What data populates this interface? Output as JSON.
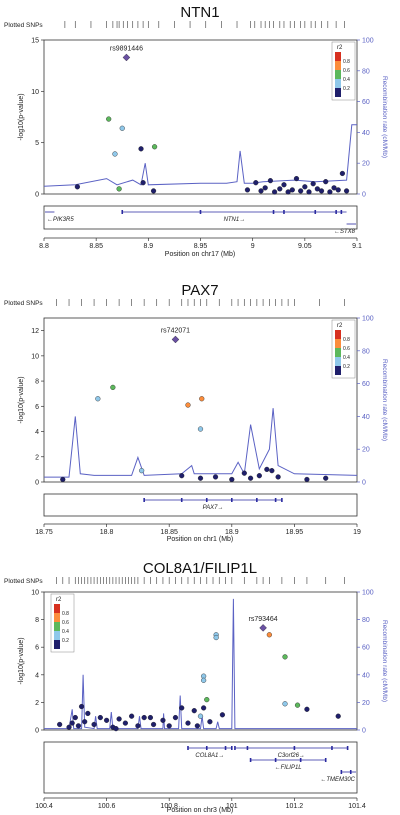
{
  "chart_data": [
    {
      "type": "scatter",
      "title": "NTN1",
      "plotted_snps_label": "Plotted SNPs",
      "xlabel": "Position on chr17 (Mb)",
      "ylabel": "-log10(p-value)",
      "y2label": "Recombination rate (cM/Mb)",
      "xlim": [
        8.8,
        9.1
      ],
      "ylim": [
        0,
        15
      ],
      "y2lim": [
        0,
        100
      ],
      "x_ticks": [
        "8.8",
        "8.85",
        "8.9",
        "8.95",
        "9",
        "9.05",
        "9.1"
      ],
      "y_ticks": [
        "0",
        "5",
        "10",
        "15"
      ],
      "y2_ticks": [
        "0",
        "20",
        "40",
        "60",
        "80",
        "100"
      ],
      "lead_snp": {
        "name": "rs9891446",
        "x": 8.879,
        "y": 13.3
      },
      "legend": {
        "title": "r2",
        "labels": [
          "0.8",
          "0.6",
          "0.4",
          "0.2"
        ],
        "colors": [
          "#d7301f",
          "#fc8d3c",
          "#5cb85c",
          "#8fc8ea",
          "#1f1f6b"
        ]
      },
      "points": [
        {
          "x": 8.862,
          "y": 7.3,
          "color": "#5cb85c"
        },
        {
          "x": 8.875,
          "y": 6.4,
          "color": "#8fc8ea"
        },
        {
          "x": 8.868,
          "y": 3.9,
          "color": "#8fc8ea"
        },
        {
          "x": 8.893,
          "y": 4.4,
          "color": "#1f1f6b"
        },
        {
          "x": 8.906,
          "y": 4.6,
          "color": "#5cb85c"
        },
        {
          "x": 8.872,
          "y": 0.5,
          "color": "#5cb85c"
        },
        {
          "x": 8.832,
          "y": 0.7,
          "color": "#1f1f6b"
        },
        {
          "x": 8.895,
          "y": 1.1,
          "color": "#1f1f6b"
        },
        {
          "x": 8.905,
          "y": 0.3,
          "color": "#1f1f6b"
        },
        {
          "x": 8.995,
          "y": 0.4,
          "color": "#1f1f6b"
        },
        {
          "x": 9.003,
          "y": 1.1,
          "color": "#1f1f6b"
        },
        {
          "x": 9.008,
          "y": 0.3,
          "color": "#1f1f6b"
        },
        {
          "x": 9.012,
          "y": 0.6,
          "color": "#1f1f6b"
        },
        {
          "x": 9.017,
          "y": 1.3,
          "color": "#1f1f6b"
        },
        {
          "x": 9.021,
          "y": 0.2,
          "color": "#1f1f6b"
        },
        {
          "x": 9.026,
          "y": 0.5,
          "color": "#1f1f6b"
        },
        {
          "x": 9.03,
          "y": 0.9,
          "color": "#1f1f6b"
        },
        {
          "x": 9.034,
          "y": 0.2,
          "color": "#1f1f6b"
        },
        {
          "x": 9.038,
          "y": 0.4,
          "color": "#1f1f6b"
        },
        {
          "x": 9.042,
          "y": 1.5,
          "color": "#1f1f6b"
        },
        {
          "x": 9.046,
          "y": 0.3,
          "color": "#1f1f6b"
        },
        {
          "x": 9.05,
          "y": 0.7,
          "color": "#1f1f6b"
        },
        {
          "x": 9.054,
          "y": 0.2,
          "color": "#1f1f6b"
        },
        {
          "x": 9.058,
          "y": 1.0,
          "color": "#1f1f6b"
        },
        {
          "x": 9.062,
          "y": 0.5,
          "color": "#1f1f6b"
        },
        {
          "x": 9.066,
          "y": 0.3,
          "color": "#1f1f6b"
        },
        {
          "x": 9.07,
          "y": 1.2,
          "color": "#1f1f6b"
        },
        {
          "x": 9.074,
          "y": 0.2,
          "color": "#1f1f6b"
        },
        {
          "x": 9.078,
          "y": 0.6,
          "color": "#1f1f6b"
        },
        {
          "x": 9.082,
          "y": 0.4,
          "color": "#1f1f6b"
        },
        {
          "x": 9.086,
          "y": 2.0,
          "color": "#1f1f6b"
        },
        {
          "x": 9.09,
          "y": 0.3,
          "color": "#1f1f6b"
        }
      ],
      "recombination": [
        [
          8.8,
          5
        ],
        [
          8.83,
          6
        ],
        [
          8.86,
          10
        ],
        [
          8.87,
          6
        ],
        [
          8.885,
          9
        ],
        [
          8.893,
          6
        ],
        [
          8.897,
          20
        ],
        [
          8.9,
          6
        ],
        [
          8.95,
          7
        ],
        [
          8.975,
          7
        ],
        [
          8.985,
          8
        ],
        [
          8.988,
          28
        ],
        [
          8.992,
          7
        ],
        [
          9.0,
          7
        ],
        [
          9.01,
          8
        ],
        [
          9.04,
          9
        ],
        [
          9.06,
          8
        ],
        [
          9.09,
          9
        ],
        [
          9.095,
          45
        ],
        [
          9.1,
          45
        ]
      ],
      "snp_positions": [
        8.82,
        8.83,
        8.845,
        8.86,
        8.866,
        8.87,
        8.872,
        8.876,
        8.88,
        8.885,
        8.89,
        8.895,
        8.9,
        8.91,
        8.925,
        8.94,
        8.955,
        8.97,
        8.985,
        8.998,
        9.002,
        9.008,
        9.012,
        9.016,
        9.02,
        9.026,
        9.03,
        9.036,
        9.04,
        9.046,
        9.05,
        9.056,
        9.06,
        9.066,
        9.072,
        9.08,
        9.088
      ],
      "genes": [
        {
          "name": "PIK3R5",
          "start": 8.78,
          "end": 8.81,
          "dir": "left",
          "row": 0,
          "exons": []
        },
        {
          "name": "NTN1",
          "start": 8.875,
          "end": 9.09,
          "dir": "right",
          "row": 0,
          "exons": [
            8.875,
            8.95,
            9.02,
            9.03,
            9.06,
            9.08,
            9.085
          ]
        },
        {
          "name": "STX8",
          "start": 9.09,
          "end": 9.11,
          "dir": "left",
          "row": 1,
          "exons": []
        }
      ]
    },
    {
      "type": "scatter",
      "title": "PAX7",
      "plotted_snps_label": "Plotted SNPs",
      "xlabel": "Position on chr1 (Mb)",
      "ylabel": "-log10(p-value)",
      "y2label": "Recombination rate (cM/Mb)",
      "xlim": [
        18.75,
        19.0
      ],
      "ylim": [
        0,
        13
      ],
      "y2lim": [
        0,
        100
      ],
      "x_ticks": [
        "18.75",
        "18.8",
        "18.85",
        "18.9",
        "18.95",
        "19"
      ],
      "y_ticks": [
        "0",
        "2",
        "4",
        "6",
        "8",
        "10",
        "12"
      ],
      "y2_ticks": [
        "0",
        "20",
        "40",
        "60",
        "80",
        "100"
      ],
      "lead_snp": {
        "name": "rs742071",
        "x": 18.855,
        "y": 11.3
      },
      "legend": {
        "title": "r2",
        "labels": [
          "0.8",
          "0.6",
          "0.4",
          "0.2"
        ],
        "colors": [
          "#d7301f",
          "#fc8d3c",
          "#5cb85c",
          "#8fc8ea",
          "#1f1f6b"
        ]
      },
      "points": [
        {
          "x": 18.805,
          "y": 7.5,
          "color": "#5cb85c"
        },
        {
          "x": 18.793,
          "y": 6.6,
          "color": "#8fc8ea"
        },
        {
          "x": 18.865,
          "y": 6.1,
          "color": "#fc8d3c"
        },
        {
          "x": 18.876,
          "y": 6.6,
          "color": "#fc8d3c"
        },
        {
          "x": 18.875,
          "y": 4.2,
          "color": "#8fc8ea"
        },
        {
          "x": 18.828,
          "y": 0.9,
          "color": "#8fc8ea"
        },
        {
          "x": 18.765,
          "y": 0.2,
          "color": "#1f1f6b"
        },
        {
          "x": 18.86,
          "y": 0.5,
          "color": "#1f1f6b"
        },
        {
          "x": 18.875,
          "y": 0.3,
          "color": "#1f1f6b"
        },
        {
          "x": 18.887,
          "y": 0.4,
          "color": "#1f1f6b"
        },
        {
          "x": 18.9,
          "y": 0.2,
          "color": "#1f1f6b"
        },
        {
          "x": 18.91,
          "y": 0.7,
          "color": "#1f1f6b"
        },
        {
          "x": 18.915,
          "y": 0.3,
          "color": "#1f1f6b"
        },
        {
          "x": 18.922,
          "y": 0.5,
          "color": "#1f1f6b"
        },
        {
          "x": 18.928,
          "y": 1.0,
          "color": "#1f1f6b"
        },
        {
          "x": 18.932,
          "y": 0.9,
          "color": "#1f1f6b"
        },
        {
          "x": 18.937,
          "y": 0.4,
          "color": "#1f1f6b"
        },
        {
          "x": 18.96,
          "y": 0.2,
          "color": "#1f1f6b"
        },
        {
          "x": 18.975,
          "y": 0.3,
          "color": "#1f1f6b"
        }
      ],
      "recombination": [
        [
          18.75,
          3
        ],
        [
          18.77,
          3
        ],
        [
          18.775,
          40
        ],
        [
          18.779,
          5
        ],
        [
          18.79,
          4
        ],
        [
          18.82,
          4
        ],
        [
          18.825,
          15
        ],
        [
          18.83,
          4
        ],
        [
          18.86,
          5
        ],
        [
          18.868,
          10
        ],
        [
          18.87,
          5
        ],
        [
          18.9,
          5
        ],
        [
          18.905,
          12
        ],
        [
          18.91,
          5
        ],
        [
          18.915,
          35
        ],
        [
          18.922,
          8
        ],
        [
          18.93,
          20
        ],
        [
          18.933,
          45
        ],
        [
          18.937,
          10
        ],
        [
          18.95,
          5
        ],
        [
          19.0,
          4
        ]
      ],
      "snp_positions": [
        18.76,
        18.77,
        18.78,
        18.79,
        18.8,
        18.81,
        18.82,
        18.83,
        18.84,
        18.85,
        18.86,
        18.865,
        18.87,
        18.875,
        18.88,
        18.89,
        18.9,
        18.905,
        18.91,
        18.915,
        18.92,
        18.925,
        18.93,
        18.935,
        18.94,
        18.945,
        18.95,
        18.97,
        18.99
      ],
      "genes": [
        {
          "name": "PAX7",
          "start": 18.83,
          "end": 18.94,
          "dir": "right",
          "row": 0,
          "exons": [
            18.83,
            18.86,
            18.88,
            18.9,
            18.92,
            18.935,
            18.94
          ]
        }
      ]
    },
    {
      "type": "scatter",
      "title": "COL8A1/FILIP1L",
      "plotted_snps_label": "Plotted SNPs",
      "xlabel": "Position on chr3 (Mb)",
      "ylabel": "-log10(p-value)",
      "y2label": "Recombination rate (cM/Mb)",
      "xlim": [
        100.4,
        101.4
      ],
      "ylim": [
        0,
        10
      ],
      "y2lim": [
        0,
        100
      ],
      "x_ticks": [
        "100.4",
        "100.6",
        "100.8",
        "101",
        "101.2",
        "101.4"
      ],
      "y_ticks": [
        "0",
        "2",
        "4",
        "6",
        "8",
        "10"
      ],
      "y2_ticks": [
        "0",
        "20",
        "40",
        "60",
        "80",
        "100"
      ],
      "lead_snp": {
        "name": "rs793464",
        "x": 101.1,
        "y": 7.4
      },
      "legend": {
        "title": "r2",
        "labels": [
          "0.8",
          "0.6",
          "0.4",
          "0.2"
        ],
        "colors": [
          "#d7301f",
          "#fc8d3c",
          "#5cb85c",
          "#8fc8ea",
          "#1f1f6b"
        ]
      },
      "points": [
        {
          "x": 101.12,
          "y": 6.9,
          "color": "#fc8d3c"
        },
        {
          "x": 101.17,
          "y": 5.3,
          "color": "#5cb85c"
        },
        {
          "x": 100.95,
          "y": 6.9,
          "color": "#8fc8ea"
        },
        {
          "x": 100.95,
          "y": 6.7,
          "color": "#8fc8ea"
        },
        {
          "x": 100.91,
          "y": 3.9,
          "color": "#8fc8ea"
        },
        {
          "x": 100.91,
          "y": 3.6,
          "color": "#8fc8ea"
        },
        {
          "x": 100.92,
          "y": 2.2,
          "color": "#5cb85c"
        },
        {
          "x": 100.91,
          "y": 1.6,
          "color": "#1f1f6b"
        },
        {
          "x": 100.9,
          "y": 1.0,
          "color": "#8fc8ea"
        },
        {
          "x": 101.17,
          "y": 1.9,
          "color": "#8fc8ea"
        },
        {
          "x": 101.21,
          "y": 1.8,
          "color": "#5cb85c"
        },
        {
          "x": 101.24,
          "y": 1.5,
          "color": "#1f1f6b"
        },
        {
          "x": 101.34,
          "y": 1.0,
          "color": "#1f1f6b"
        },
        {
          "x": 100.97,
          "y": 1.1,
          "color": "#1f1f6b"
        },
        {
          "x": 100.88,
          "y": 1.4,
          "color": "#1f1f6b"
        },
        {
          "x": 100.84,
          "y": 1.6,
          "color": "#1f1f6b"
        },
        {
          "x": 100.82,
          "y": 0.9,
          "color": "#1f1f6b"
        },
        {
          "x": 100.86,
          "y": 0.5,
          "color": "#1f1f6b"
        },
        {
          "x": 100.89,
          "y": 0.3,
          "color": "#1f1f6b"
        },
        {
          "x": 100.93,
          "y": 0.6,
          "color": "#1f1f6b"
        },
        {
          "x": 100.78,
          "y": 0.7,
          "color": "#1f1f6b"
        },
        {
          "x": 100.75,
          "y": 0.4,
          "color": "#1f1f6b"
        },
        {
          "x": 100.72,
          "y": 0.9,
          "color": "#1f1f6b"
        },
        {
          "x": 100.7,
          "y": 0.3,
          "color": "#1f1f6b"
        },
        {
          "x": 100.68,
          "y": 1.0,
          "color": "#1f1f6b"
        },
        {
          "x": 100.66,
          "y": 0.5,
          "color": "#1f1f6b"
        },
        {
          "x": 100.64,
          "y": 0.8,
          "color": "#1f1f6b"
        },
        {
          "x": 100.62,
          "y": 0.2,
          "color": "#1f1f6b"
        },
        {
          "x": 100.6,
          "y": 0.7,
          "color": "#1f1f6b"
        },
        {
          "x": 100.58,
          "y": 0.9,
          "color": "#1f1f6b"
        },
        {
          "x": 100.56,
          "y": 0.4,
          "color": "#1f1f6b"
        },
        {
          "x": 100.54,
          "y": 1.2,
          "color": "#1f1f6b"
        },
        {
          "x": 100.53,
          "y": 0.6,
          "color": "#1f1f6b"
        },
        {
          "x": 100.52,
          "y": 1.7,
          "color": "#1f1f6b"
        },
        {
          "x": 100.51,
          "y": 0.3,
          "color": "#1f1f6b"
        },
        {
          "x": 100.5,
          "y": 0.9,
          "color": "#1f1f6b"
        },
        {
          "x": 100.49,
          "y": 0.5,
          "color": "#1f1f6b"
        },
        {
          "x": 100.48,
          "y": 0.2,
          "color": "#1f1f6b"
        },
        {
          "x": 100.45,
          "y": 0.4,
          "color": "#1f1f6b"
        },
        {
          "x": 100.63,
          "y": 0.1,
          "color": "#1f1f6b"
        },
        {
          "x": 100.74,
          "y": 0.9,
          "color": "#1f1f6b"
        },
        {
          "x": 100.8,
          "y": 0.3,
          "color": "#1f1f6b"
        }
      ],
      "recombination": [
        [
          100.4,
          1
        ],
        [
          100.48,
          1
        ],
        [
          100.49,
          15
        ],
        [
          100.495,
          1
        ],
        [
          100.52,
          1
        ],
        [
          100.525,
          40
        ],
        [
          100.53,
          2
        ],
        [
          100.56,
          1
        ],
        [
          100.565,
          10
        ],
        [
          100.57,
          1
        ],
        [
          100.61,
          1
        ],
        [
          100.615,
          13
        ],
        [
          100.62,
          1
        ],
        [
          100.7,
          1
        ],
        [
          100.705,
          10
        ],
        [
          100.71,
          1
        ],
        [
          100.78,
          1
        ],
        [
          100.782,
          12
        ],
        [
          100.785,
          1
        ],
        [
          100.83,
          1
        ],
        [
          100.835,
          25
        ],
        [
          100.84,
          1
        ],
        [
          100.9,
          1
        ],
        [
          100.905,
          10
        ],
        [
          100.91,
          1
        ],
        [
          100.95,
          1
        ],
        [
          100.955,
          6
        ],
        [
          100.96,
          1
        ],
        [
          101.0,
          1
        ],
        [
          101.005,
          95
        ],
        [
          101.01,
          1
        ],
        [
          101.2,
          1
        ],
        [
          101.4,
          1
        ]
      ],
      "snp_positions": [
        100.44,
        100.46,
        100.48,
        100.5,
        100.51,
        100.52,
        100.53,
        100.54,
        100.55,
        100.56,
        100.57,
        100.58,
        100.59,
        100.6,
        100.61,
        100.62,
        100.63,
        100.64,
        100.65,
        100.66,
        100.67,
        100.68,
        100.69,
        100.7,
        100.72,
        100.74,
        100.76,
        100.78,
        100.8,
        100.82,
        100.84,
        100.86,
        100.88,
        100.9,
        100.92,
        100.94,
        100.96,
        100.98,
        101.0,
        101.04,
        101.08,
        101.1,
        101.12,
        101.16,
        101.2,
        101.24,
        101.3,
        101.36
      ],
      "genes": [
        {
          "name": "COL8A1",
          "start": 100.86,
          "end": 101.0,
          "dir": "right",
          "row": 0,
          "exons": [
            100.86,
            100.92,
            100.98,
            101.0
          ]
        },
        {
          "name": "C3orf26",
          "start": 101.01,
          "end": 101.37,
          "dir": "right",
          "row": 0,
          "exons": [
            101.01,
            101.05,
            101.2,
            101.32,
            101.37
          ]
        },
        {
          "name": "FILIP1L",
          "start": 101.06,
          "end": 101.3,
          "dir": "left",
          "row": 1,
          "exons": [
            101.06,
            101.14,
            101.22,
            101.3
          ]
        },
        {
          "name": "TMEM30C",
          "start": 101.35,
          "end": 101.4,
          "dir": "left",
          "row": 2,
          "exons": [
            101.35,
            101.38
          ]
        }
      ]
    }
  ]
}
